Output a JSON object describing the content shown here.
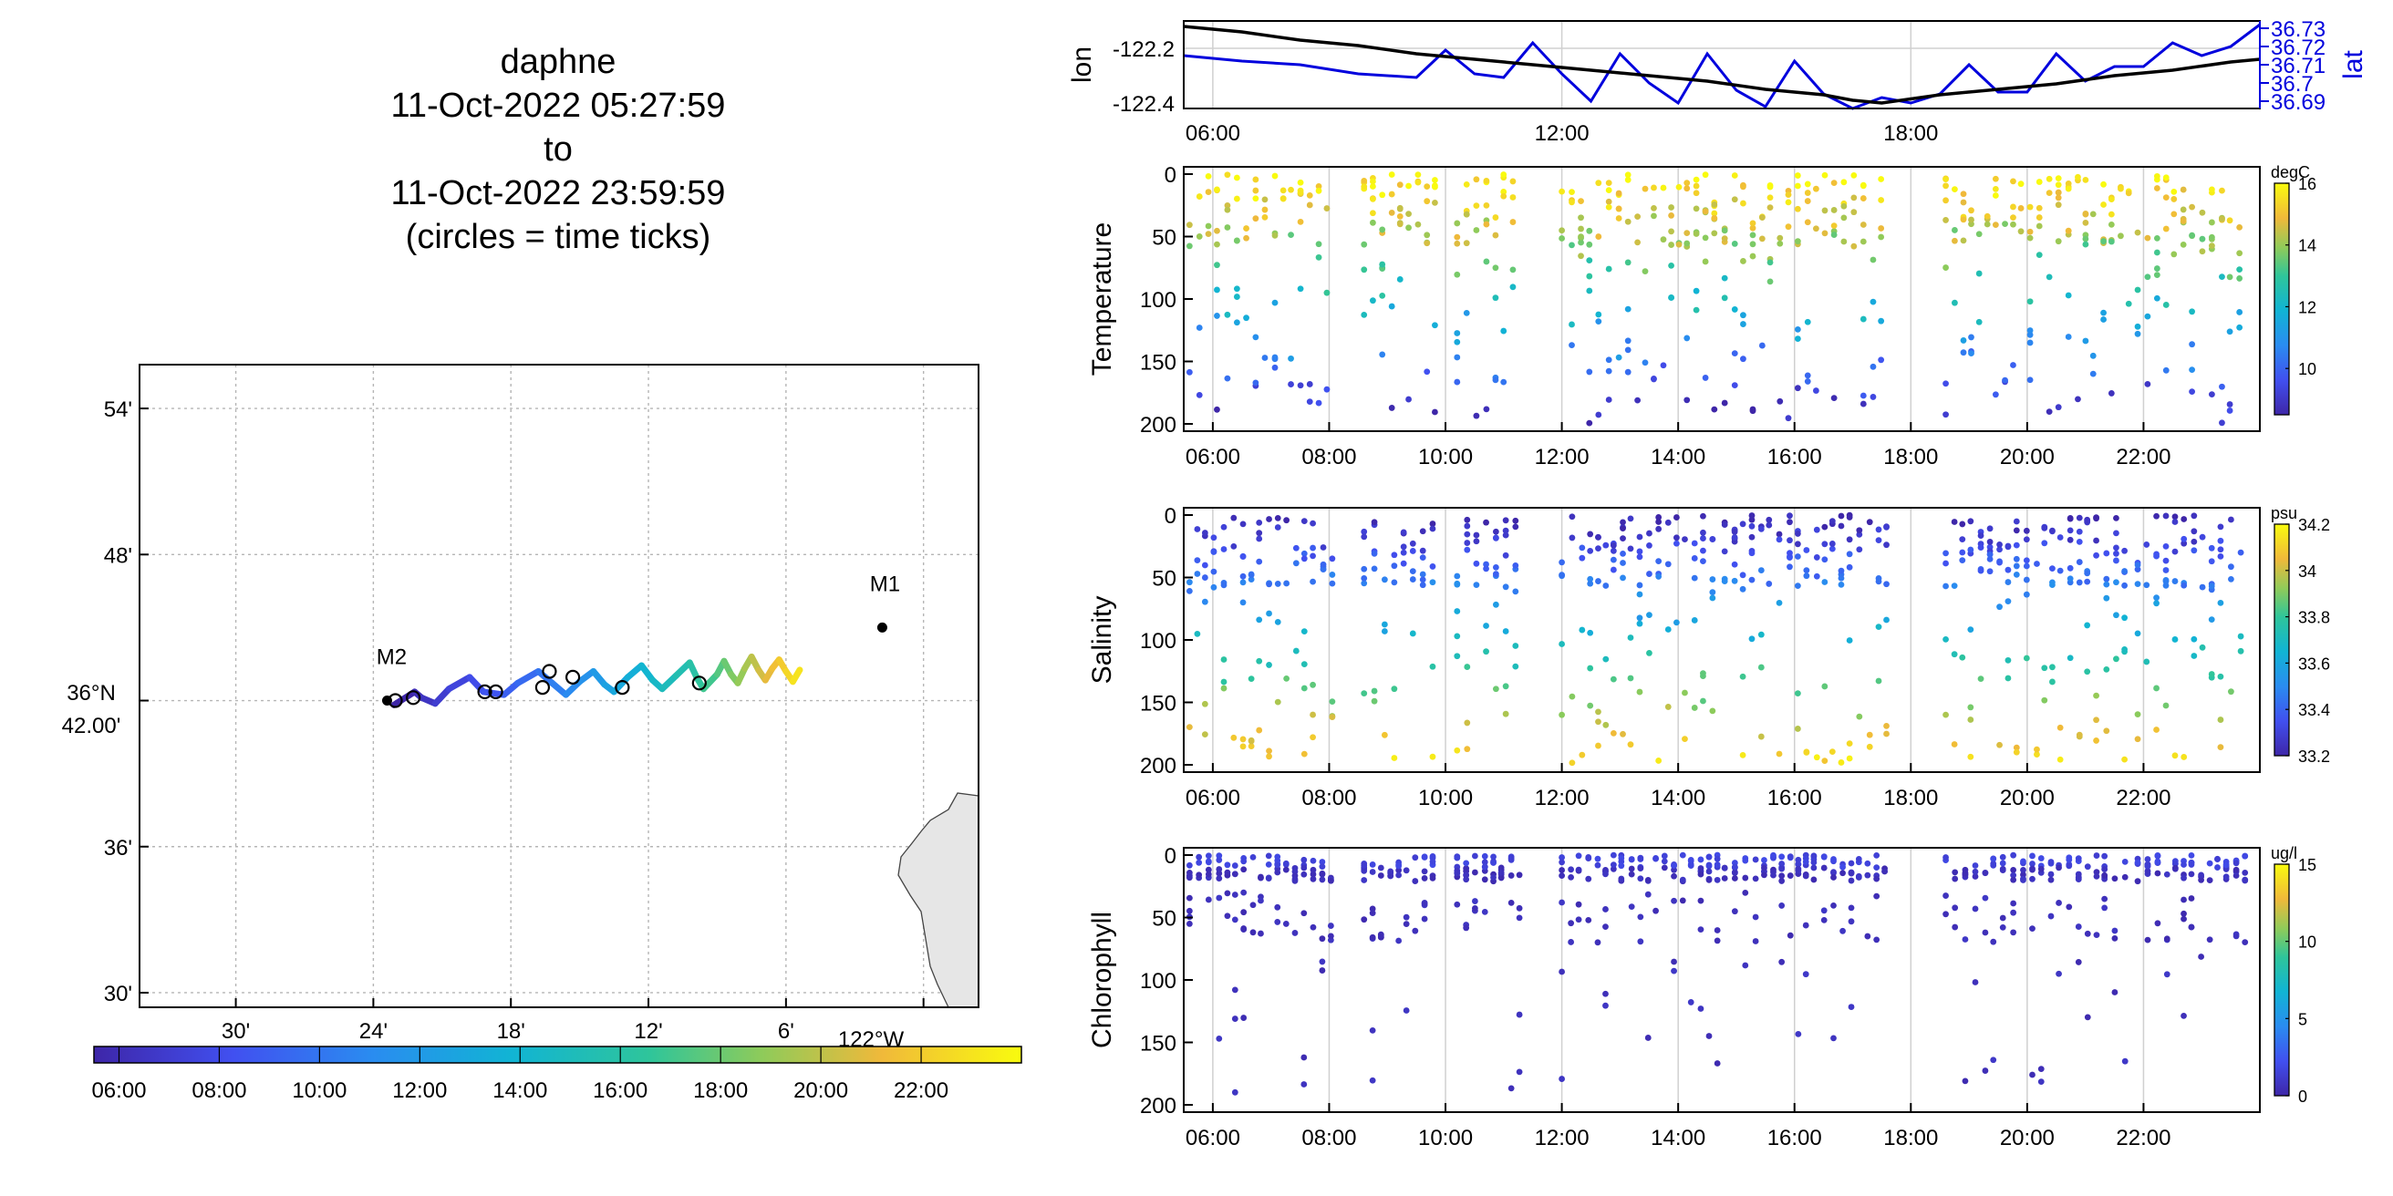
{
  "title": {
    "line1": "daphne",
    "line2": "11-Oct-2022 05:27:59",
    "line3": "to",
    "line4": "11-Oct-2022 23:59:59",
    "line5": "(circles = time ticks)"
  },
  "colors": {
    "blue_axis": "#0000dd",
    "coast": "#e6e6e6"
  },
  "chart_data": [
    {
      "type": "scatter",
      "id": "map",
      "xlabel": "",
      "ylabel": "",
      "lat_ticks": [
        "54'",
        "48'",
        "36'",
        "30'"
      ],
      "lat_main_label": [
        "36°N",
        "42.00'"
      ],
      "lon_ticks": [
        "30'",
        "24'",
        "18'",
        "12'",
        "6'"
      ],
      "lon_main_label": "122°W",
      "lat_range": [
        36.49,
        36.93
      ],
      "lon_range": [
        -122.57,
        -121.96
      ],
      "moorings": [
        {
          "name": "M2",
          "lon": -122.39,
          "lat": 36.7
        },
        {
          "name": "M1",
          "lon": -122.03,
          "lat": 36.75
        }
      ],
      "track": [
        {
          "t": 5.5,
          "lon": -122.385,
          "lat": 36.697
        },
        {
          "t": 6.0,
          "lon": -122.37,
          "lat": 36.706
        },
        {
          "t": 6.5,
          "lon": -122.365,
          "lat": 36.702
        },
        {
          "t": 7.0,
          "lon": -122.355,
          "lat": 36.698
        },
        {
          "t": 7.5,
          "lon": -122.345,
          "lat": 36.708
        },
        {
          "t": 8.0,
          "lon": -122.33,
          "lat": 36.716
        },
        {
          "t": 8.5,
          "lon": -122.32,
          "lat": 36.706
        },
        {
          "t": 9.0,
          "lon": -122.305,
          "lat": 36.704
        },
        {
          "t": 9.5,
          "lon": -122.295,
          "lat": 36.712
        },
        {
          "t": 10.0,
          "lon": -122.28,
          "lat": 36.72
        },
        {
          "t": 10.5,
          "lon": -122.27,
          "lat": 36.712
        },
        {
          "t": 11.0,
          "lon": -122.26,
          "lat": 36.704
        },
        {
          "t": 11.5,
          "lon": -122.25,
          "lat": 36.713
        },
        {
          "t": 12.0,
          "lon": -122.24,
          "lat": 36.72
        },
        {
          "t": 12.5,
          "lon": -122.232,
          "lat": 36.711
        },
        {
          "t": 13.0,
          "lon": -122.225,
          "lat": 36.706
        },
        {
          "t": 13.5,
          "lon": -122.215,
          "lat": 36.716
        },
        {
          "t": 14.0,
          "lon": -122.205,
          "lat": 36.724
        },
        {
          "t": 14.5,
          "lon": -122.197,
          "lat": 36.714
        },
        {
          "t": 15.0,
          "lon": -122.19,
          "lat": 36.708
        },
        {
          "t": 15.5,
          "lon": -122.18,
          "lat": 36.717
        },
        {
          "t": 16.0,
          "lon": -122.17,
          "lat": 36.726
        },
        {
          "t": 16.5,
          "lon": -122.165,
          "lat": 36.716
        },
        {
          "t": 17.0,
          "lon": -122.16,
          "lat": 36.708
        },
        {
          "t": 17.5,
          "lon": -122.15,
          "lat": 36.718
        },
        {
          "t": 18.0,
          "lon": -122.145,
          "lat": 36.727
        },
        {
          "t": 18.5,
          "lon": -122.14,
          "lat": 36.718
        },
        {
          "t": 19.0,
          "lon": -122.135,
          "lat": 36.712
        },
        {
          "t": 19.5,
          "lon": -122.13,
          "lat": 36.722
        },
        {
          "t": 20.0,
          "lon": -122.125,
          "lat": 36.73
        },
        {
          "t": 20.5,
          "lon": -122.12,
          "lat": 36.721
        },
        {
          "t": 21.0,
          "lon": -122.115,
          "lat": 36.714
        },
        {
          "t": 21.5,
          "lon": -122.11,
          "lat": 36.722
        },
        {
          "t": 22.0,
          "lon": -122.105,
          "lat": 36.728
        },
        {
          "t": 22.5,
          "lon": -122.1,
          "lat": 36.72
        },
        {
          "t": 23.0,
          "lon": -122.095,
          "lat": 36.713
        },
        {
          "t": 23.5,
          "lon": -122.09,
          "lat": 36.721
        }
      ],
      "time_ticks": [
        {
          "lon": -122.384,
          "lat": 36.7
        },
        {
          "lon": -122.371,
          "lat": 36.702
        },
        {
          "lon": -122.319,
          "lat": 36.706
        },
        {
          "lon": -122.311,
          "lat": 36.706
        },
        {
          "lon": -122.277,
          "lat": 36.709
        },
        {
          "lon": -122.272,
          "lat": 36.72
        },
        {
          "lon": -122.255,
          "lat": 36.716
        },
        {
          "lon": -122.219,
          "lat": 36.709
        },
        {
          "lon": -122.163,
          "lat": 36.712
        }
      ],
      "colorbar_ticks": [
        "06:00",
        "08:00",
        "10:00",
        "12:00",
        "14:00",
        "16:00",
        "18:00",
        "20:00",
        "22:00"
      ],
      "colorbar_range": [
        5.5,
        24.0
      ]
    },
    {
      "type": "line",
      "id": "lonlat",
      "ylabel": "lon",
      "y2label": "lat",
      "y_ticks": [
        "-122.2",
        "-122.4"
      ],
      "y_range": [
        -122.42,
        -122.1
      ],
      "y2_ticks": [
        "36.73",
        "36.72",
        "36.71",
        "36.7",
        "36.69"
      ],
      "y2_range": [
        36.686,
        36.734
      ],
      "x_ticks": [
        "06:00",
        "12:00",
        "18:00"
      ],
      "x_range": [
        5.5,
        24.0
      ],
      "series": [
        {
          "name": "lon",
          "x": [
            5.5,
            6.5,
            7.5,
            8.5,
            9.5,
            10.5,
            11.5,
            12.5,
            13.5,
            14.5,
            15.5,
            16.5,
            17.0,
            17.5,
            18.5,
            19.5,
            20.5,
            21.5,
            22.5,
            23.5,
            24.0
          ],
          "y": [
            -122.12,
            -122.14,
            -122.17,
            -122.19,
            -122.22,
            -122.24,
            -122.26,
            -122.28,
            -122.3,
            -122.32,
            -122.35,
            -122.37,
            -122.39,
            -122.4,
            -122.37,
            -122.35,
            -122.33,
            -122.3,
            -122.28,
            -122.25,
            -122.24
          ]
        },
        {
          "name": "lat",
          "x": [
            5.5,
            6.5,
            7.5,
            8.5,
            9.5,
            10.0,
            10.5,
            11.0,
            11.5,
            12.0,
            12.5,
            13.0,
            13.5,
            14.0,
            14.5,
            15.0,
            15.5,
            16.0,
            16.5,
            17.0,
            17.5,
            18.0,
            18.5,
            19.0,
            19.5,
            20.0,
            20.5,
            21.0,
            21.5,
            22.0,
            22.5,
            23.0,
            23.5,
            24.0
          ],
          "y": [
            36.715,
            36.712,
            36.71,
            36.705,
            36.703,
            36.718,
            36.705,
            36.703,
            36.722,
            36.705,
            36.69,
            36.716,
            36.7,
            36.689,
            36.716,
            36.696,
            36.687,
            36.712,
            36.694,
            36.686,
            36.692,
            36.689,
            36.694,
            36.71,
            36.695,
            36.695,
            36.716,
            36.701,
            36.709,
            36.709,
            36.722,
            36.715,
            36.72,
            36.732
          ]
        }
      ]
    },
    {
      "type": "scatter",
      "id": "temperature",
      "ylabel": "Temperature",
      "unit": "degC",
      "y_ticks": [
        "0",
        "50",
        "100",
        "150",
        "200"
      ],
      "y_range": [
        0,
        200
      ],
      "x_ticks": [
        "06:00",
        "08:00",
        "10:00",
        "12:00",
        "14:00",
        "16:00",
        "18:00",
        "20:00",
        "22:00"
      ],
      "x_range": [
        5.5,
        24.0
      ],
      "colorbar_ticks": [
        "10",
        "12",
        "14",
        "16"
      ],
      "colorbar_range": [
        8.5,
        16.0
      ]
    },
    {
      "type": "scatter",
      "id": "salinity",
      "ylabel": "Salinity",
      "unit": "psu",
      "y_ticks": [
        "0",
        "50",
        "100",
        "150",
        "200"
      ],
      "y_range": [
        0,
        200
      ],
      "x_ticks": [
        "06:00",
        "08:00",
        "10:00",
        "12:00",
        "14:00",
        "16:00",
        "18:00",
        "20:00",
        "22:00"
      ],
      "x_range": [
        5.5,
        24.0
      ],
      "colorbar_ticks": [
        "33.2",
        "33.4",
        "33.6",
        "33.8",
        "34",
        "34.2"
      ],
      "colorbar_range": [
        33.2,
        34.2
      ]
    },
    {
      "type": "scatter",
      "id": "chlorophyll",
      "ylabel": "Chlorophyll",
      "unit": "ug/l",
      "y_ticks": [
        "0",
        "50",
        "100",
        "150",
        "200"
      ],
      "y_range": [
        0,
        200
      ],
      "x_ticks": [
        "06:00",
        "08:00",
        "10:00",
        "12:00",
        "14:00",
        "16:00",
        "18:00",
        "20:00",
        "22:00"
      ],
      "x_range": [
        5.5,
        24.0
      ],
      "colorbar_ticks": [
        "0",
        "5",
        "10",
        "15"
      ],
      "colorbar_range": [
        0,
        15
      ]
    }
  ]
}
